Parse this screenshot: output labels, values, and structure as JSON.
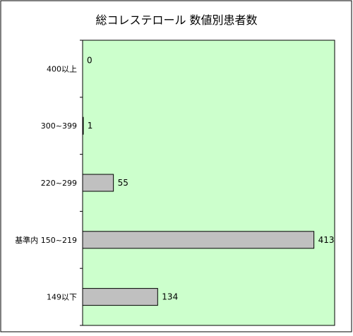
{
  "chart_data": {
    "type": "bar",
    "orientation": "horizontal",
    "title": "総コレステロール 数値別患者数",
    "categories": [
      "400以上",
      "300~399",
      "220~299",
      "基準内 150~219",
      "149以下"
    ],
    "values": [
      0,
      1,
      55,
      413,
      134
    ],
    "data_labels": [
      "0",
      "1",
      "55",
      "413",
      "134"
    ],
    "xlim": [
      0,
      450
    ],
    "grid": false,
    "legend": "none"
  },
  "colors": {
    "plot_background": "#ccffcc",
    "bar_fill": "#c0c0c0",
    "bar_stroke": "#000000",
    "frame": "#000000"
  }
}
